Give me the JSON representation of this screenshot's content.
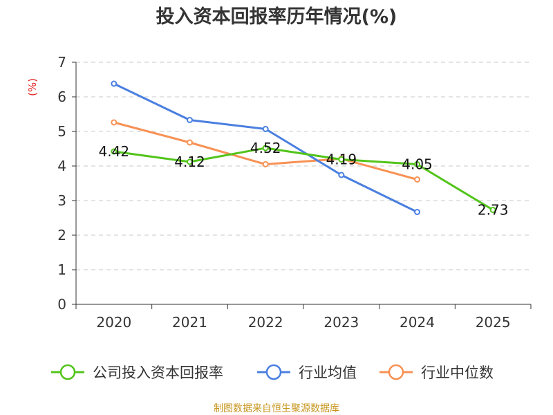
{
  "chart_data": {
    "type": "line",
    "title": "投入资本回报率历年情况(%)",
    "ylabel": "(%)",
    "xlabel": "",
    "categories": [
      "2020",
      "2021",
      "2022",
      "2023",
      "2024",
      "2025"
    ],
    "ylim": [
      0,
      7
    ],
    "yticks": [
      0,
      1,
      2,
      3,
      4,
      5,
      6,
      7
    ],
    "grid": true,
    "legend_position": "bottom",
    "series": [
      {
        "name": "公司投入资本回报率",
        "color": "#52c41a",
        "values": [
          4.42,
          4.12,
          4.52,
          4.19,
          4.05,
          2.73
        ],
        "labels": [
          "4.42",
          "4.12",
          "4.52",
          "4.19",
          "4.05",
          "2.73"
        ]
      },
      {
        "name": "行业均值",
        "color": "#4a7fe0",
        "values": [
          6.38,
          5.33,
          5.07,
          3.74,
          2.67,
          null
        ]
      },
      {
        "name": "行业中位数",
        "color": "#f79154",
        "values": [
          5.26,
          4.68,
          4.05,
          4.21,
          3.61,
          null
        ]
      }
    ]
  },
  "footer": {
    "source": "制图数据来自恒生聚源数据库"
  }
}
